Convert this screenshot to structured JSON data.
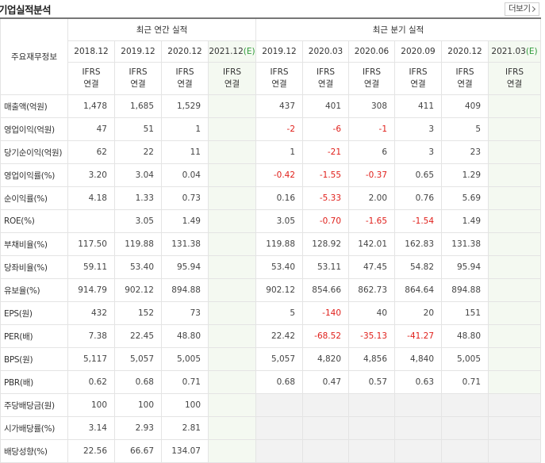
{
  "header": {
    "title": "기업실적분석",
    "more": "더보기"
  },
  "table": {
    "corner": "주요재무정보",
    "groups": [
      "최근 연간 실적",
      "최근 분기 실적"
    ],
    "periods": [
      {
        "date": "2018.12"
      },
      {
        "date": "2019.12"
      },
      {
        "date": "2020.12"
      },
      {
        "date": "2021.12",
        "mark": "(E)"
      },
      {
        "date": "2019.12"
      },
      {
        "date": "2020.03"
      },
      {
        "date": "2020.06"
      },
      {
        "date": "2020.09"
      },
      {
        "date": "2020.12"
      },
      {
        "date": "2021.03",
        "mark": "(E)"
      }
    ],
    "accounting": [
      {
        "standard": "IFRS",
        "basis": "연결"
      },
      {
        "standard": "IFRS",
        "basis": "연결"
      },
      {
        "standard": "IFRS",
        "basis": "연결"
      },
      {
        "standard": "IFRS",
        "basis": "연결"
      },
      {
        "standard": "IFRS",
        "basis": "연결"
      },
      {
        "standard": "IFRS",
        "basis": "연결"
      },
      {
        "standard": "IFRS",
        "basis": "연결"
      },
      {
        "standard": "IFRS",
        "basis": "연결"
      },
      {
        "standard": "IFRS",
        "basis": "연결"
      },
      {
        "standard": "IFRS",
        "basis": "연결"
      }
    ],
    "rows": [
      [
        "매출액(억원)",
        "1,478",
        "1,685",
        "1,529",
        null,
        "437",
        "401",
        "308",
        "411",
        "409",
        null
      ],
      [
        "영업이익(억원)",
        "47",
        "51",
        "1",
        null,
        "-2",
        "-6",
        "-1",
        "3",
        "5",
        null
      ],
      [
        "당기순이익(억원)",
        "62",
        "22",
        "11",
        null,
        "1",
        "-21",
        "6",
        "3",
        "23",
        null
      ],
      [
        "영업이익률(%)",
        "3.20",
        "3.04",
        "0.04",
        null,
        "-0.42",
        "-1.55",
        "-0.37",
        "0.65",
        "1.29",
        null
      ],
      [
        "순이익률(%)",
        "4.18",
        "1.33",
        "0.73",
        null,
        "0.16",
        "-5.33",
        "2.00",
        "0.76",
        "5.69",
        null
      ],
      [
        "ROE(%)",
        null,
        "3.05",
        "1.49",
        null,
        "3.05",
        "-0.70",
        "-1.65",
        "-1.54",
        "1.49",
        null
      ],
      [
        "부채비율(%)",
        "117.50",
        "119.88",
        "131.38",
        null,
        "119.88",
        "128.92",
        "142.01",
        "162.83",
        "131.38",
        null
      ],
      [
        "당좌비율(%)",
        "59.11",
        "53.40",
        "95.94",
        null,
        "53.40",
        "53.11",
        "47.45",
        "54.82",
        "95.94",
        null
      ],
      [
        "유보율(%)",
        "914.79",
        "902.12",
        "894.88",
        null,
        "902.12",
        "854.66",
        "862.73",
        "864.64",
        "894.88",
        null
      ],
      [
        "EPS(원)",
        "432",
        "152",
        "73",
        null,
        "5",
        "-140",
        "40",
        "20",
        "151",
        null
      ],
      [
        "PER(배)",
        "7.38",
        "22.45",
        "48.80",
        null,
        "22.42",
        "-68.52",
        "-35.13",
        "-41.27",
        "48.80",
        null
      ],
      [
        "BPS(원)",
        "5,117",
        "5,057",
        "5,005",
        null,
        "5,057",
        "4,820",
        "4,856",
        "4,840",
        "5,005",
        null
      ],
      [
        "PBR(배)",
        "0.62",
        "0.68",
        "0.71",
        null,
        "0.68",
        "0.47",
        "0.57",
        "0.63",
        "0.71",
        null
      ],
      [
        "주당배당금(원)",
        "100",
        "100",
        "100",
        null,
        null,
        null,
        null,
        null,
        null,
        null
      ],
      [
        "시가배당률(%)",
        "3.14",
        "2.93",
        "2.81",
        null,
        null,
        null,
        null,
        null,
        null,
        null
      ],
      [
        "배당성향(%)",
        "22.56",
        "66.67",
        "134.07",
        null,
        null,
        null,
        null,
        null,
        null,
        null
      ]
    ]
  }
}
